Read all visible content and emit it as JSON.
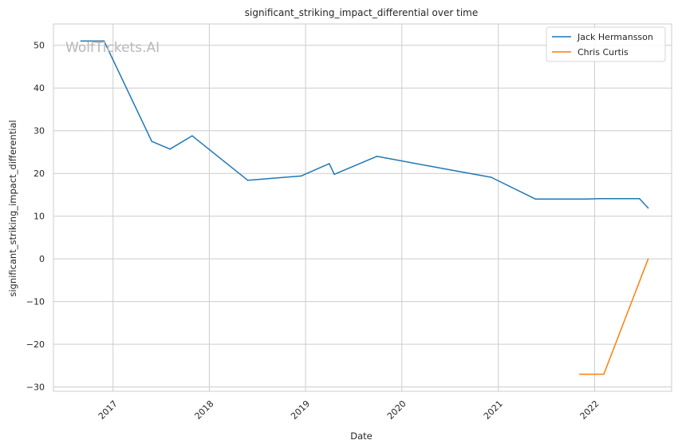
{
  "watermark": "WolfTickets.AI",
  "chart_data": {
    "type": "line",
    "title": "significant_striking_impact_differential over time",
    "xlabel": "Date",
    "ylabel": "significant_striking_impact_differential",
    "xlim": [
      "2016-05-20",
      "2022-10-20"
    ],
    "ylim": [
      -31,
      55
    ],
    "x_ticks": [
      "2017-01-01",
      "2018-01-01",
      "2019-01-01",
      "2020-01-01",
      "2021-01-01",
      "2022-01-01"
    ],
    "x_tick_labels": [
      "2017",
      "2018",
      "2019",
      "2020",
      "2021",
      "2022"
    ],
    "y_ticks": [
      -30,
      -20,
      -10,
      0,
      10,
      20,
      30,
      40,
      50
    ],
    "y_tick_labels": [
      "−30",
      "−20",
      "−10",
      "0",
      "10",
      "20",
      "30",
      "40",
      "50"
    ],
    "grid": true,
    "legend_position": "top-right",
    "series": [
      {
        "name": "Jack Hermansson",
        "color": "#1f77b4",
        "points": [
          [
            "2016-09-01",
            51.0
          ],
          [
            "2016-11-28",
            51.0
          ],
          [
            "2017-05-28",
            27.5
          ],
          [
            "2017-08-05",
            25.7
          ],
          [
            "2017-10-28",
            28.8
          ],
          [
            "2018-05-27",
            18.4
          ],
          [
            "2018-12-15",
            19.4
          ],
          [
            "2019-04-01",
            22.3
          ],
          [
            "2019-04-20",
            19.8
          ],
          [
            "2019-09-28",
            24.0
          ],
          [
            "2020-08-01",
            20.5
          ],
          [
            "2020-12-05",
            19.1
          ],
          [
            "2021-05-22",
            14.0
          ],
          [
            "2021-12-01",
            14.0
          ],
          [
            "2022-01-20",
            14.1
          ],
          [
            "2022-06-20",
            14.1
          ],
          [
            "2022-07-23",
            11.9
          ]
        ]
      },
      {
        "name": "Chris Curtis",
        "color": "#ff7f0e",
        "points": [
          [
            "2021-11-06",
            -27.0
          ],
          [
            "2022-02-05",
            -27.0
          ],
          [
            "2022-07-23",
            0.0
          ]
        ]
      }
    ]
  }
}
